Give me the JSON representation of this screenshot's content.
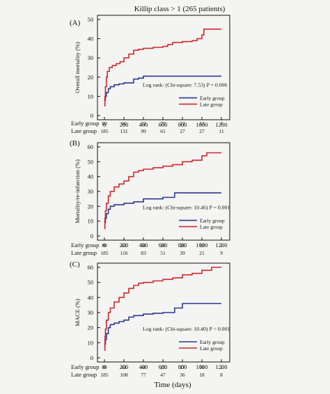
{
  "figure_title": "Killip class > 1  (265 patients)",
  "x_axis_label": "Time (days)",
  "colors": {
    "early": "#2b3a8f",
    "late": "#cc2a2a",
    "background": "#f4f4f2"
  },
  "risk_labels": {
    "early": "Early group",
    "late": "Late group"
  },
  "chart_data": [
    {
      "panel": "(A)",
      "type": "line",
      "ylabel": "Overall mortality (%)",
      "xlim": [
        0,
        1200
      ],
      "ylim": [
        0,
        50
      ],
      "x_ticks": [
        0,
        200,
        400,
        600,
        800,
        1000,
        1200
      ],
      "y_ticks": [
        0,
        10,
        20,
        30,
        40,
        50
      ],
      "annotation": "Log rank: (Chi-square: 7.53)    P = 0.006",
      "legend_position": "bottom-right",
      "series": [
        {
          "name": "Early group",
          "color": "#2b3a8f",
          "x": [
            0,
            5,
            10,
            20,
            40,
            60,
            100,
            150,
            200,
            300,
            350,
            400,
            600,
            800,
            1000,
            1200
          ],
          "y": [
            5,
            8,
            10,
            12,
            14,
            15,
            16,
            16.5,
            17,
            19,
            19.5,
            20.5,
            20.5,
            20.5,
            20.5,
            20.5
          ]
        },
        {
          "name": "Late group",
          "color": "#cc2a2a",
          "x": [
            0,
            5,
            10,
            20,
            30,
            50,
            80,
            120,
            160,
            200,
            250,
            300,
            350,
            400,
            500,
            600,
            650,
            700,
            800,
            900,
            950,
            1000,
            1020,
            1050,
            1200
          ],
          "y": [
            5,
            10,
            15,
            20,
            23,
            25,
            26,
            27,
            28,
            30,
            32,
            34,
            34.5,
            35,
            35.5,
            36,
            37,
            38,
            38.5,
            39,
            40,
            42,
            45,
            45,
            45
          ]
        }
      ],
      "risk_table": {
        "x": [
          0,
          200,
          400,
          600,
          800,
          1000,
          1200
        ],
        "early": [
          "80",
          "66",
          "52",
          "29",
          "22",
          "13",
          "4"
        ],
        "late": [
          "185",
          "131",
          "99",
          "61",
          "27",
          "27",
          "11"
        ]
      }
    },
    {
      "panel": "(B)",
      "type": "line",
      "ylabel": "Mortality/re-infarction (%)",
      "xlim": [
        0,
        1200
      ],
      "ylim": [
        0,
        60
      ],
      "x_ticks": [
        0,
        200,
        400,
        600,
        800,
        1000,
        1200
      ],
      "y_ticks": [
        0,
        10,
        20,
        30,
        40,
        50,
        60
      ],
      "annotation": "Log rank: (Chi-square: 10.46)    P = 0.001",
      "legend_position": "bottom-right",
      "series": [
        {
          "name": "Early group",
          "color": "#2b3a8f",
          "x": [
            0,
            5,
            10,
            20,
            40,
            60,
            100,
            200,
            300,
            400,
            600,
            720,
            800,
            1000,
            1200
          ],
          "y": [
            5,
            9,
            12,
            15,
            18,
            20,
            21,
            22,
            23,
            25,
            26,
            29,
            29,
            29,
            29
          ]
        },
        {
          "name": "Late group",
          "color": "#cc2a2a",
          "x": [
            0,
            5,
            10,
            20,
            40,
            60,
            100,
            150,
            200,
            250,
            300,
            350,
            400,
            500,
            600,
            700,
            800,
            900,
            1000,
            1050,
            1200
          ],
          "y": [
            5,
            12,
            17,
            22,
            27,
            30,
            33,
            35,
            37,
            40,
            43,
            44,
            45,
            46,
            47,
            48,
            50,
            51,
            54,
            56,
            56
          ]
        }
      ],
      "risk_table": {
        "x": [
          0,
          200,
          400,
          600,
          800,
          1000,
          1200
        ],
        "early": [
          "80",
          "63",
          "50",
          "26",
          "20",
          "12",
          "2"
        ],
        "late": [
          "185",
          "116",
          "83",
          "51",
          "39",
          "21",
          "9"
        ]
      }
    },
    {
      "panel": "(C)",
      "type": "line",
      "ylabel": "MACE (%)",
      "xlim": [
        0,
        1200
      ],
      "ylim": [
        0,
        60
      ],
      "x_ticks": [
        0,
        200,
        400,
        600,
        800,
        1000,
        1200
      ],
      "y_ticks": [
        0,
        10,
        20,
        30,
        40,
        50,
        60
      ],
      "annotation": "Log rank: (Chi-square: 10.40)    P = 0.001",
      "legend_position": "bottom-right",
      "series": [
        {
          "name": "Early group",
          "color": "#2b3a8f",
          "x": [
            0,
            5,
            10,
            20,
            40,
            60,
            100,
            150,
            200,
            250,
            300,
            400,
            500,
            600,
            700,
            720,
            800,
            900,
            1000,
            1200
          ],
          "y": [
            5,
            9,
            12,
            16,
            20,
            22,
            23,
            24,
            25,
            27,
            28,
            29,
            29.5,
            30,
            30,
            33,
            36,
            36,
            36,
            36
          ]
        },
        {
          "name": "Late group",
          "color": "#cc2a2a",
          "x": [
            0,
            5,
            10,
            20,
            40,
            60,
            100,
            150,
            200,
            250,
            300,
            350,
            400,
            500,
            600,
            700,
            800,
            900,
            1000,
            1100,
            1200
          ],
          "y": [
            5,
            14,
            19,
            25,
            30,
            33,
            37,
            40,
            43,
            46,
            48,
            49.5,
            50,
            51,
            52,
            53,
            55,
            56,
            58,
            60,
            60
          ]
        }
      ],
      "risk_table": {
        "x": [
          0,
          200,
          400,
          600,
          800,
          1000,
          1200
        ],
        "early": [
          "80",
          "61",
          "48",
          "25",
          "17",
          "11",
          "2"
        ],
        "late": [
          "185",
          "108",
          "77",
          "47",
          "36",
          "18",
          "8"
        ]
      }
    }
  ]
}
